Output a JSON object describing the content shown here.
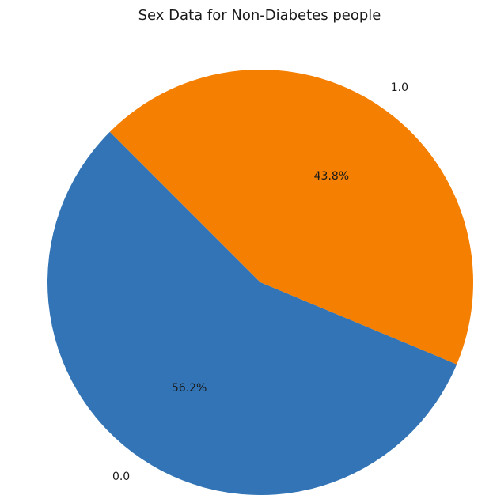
{
  "chart_data": {
    "type": "pie",
    "title": "Sex Data for Non-Diabetes people",
    "categories": [
      "0.0",
      "1.0"
    ],
    "values": [
      56.2,
      43.8
    ],
    "labels": [
      "56.2%",
      "43.8%"
    ],
    "colors": [
      "#3274b5",
      "#f57f00"
    ],
    "start_angle_deg": 135,
    "direction": "counterclockwise",
    "grid": false,
    "legend": "none"
  }
}
